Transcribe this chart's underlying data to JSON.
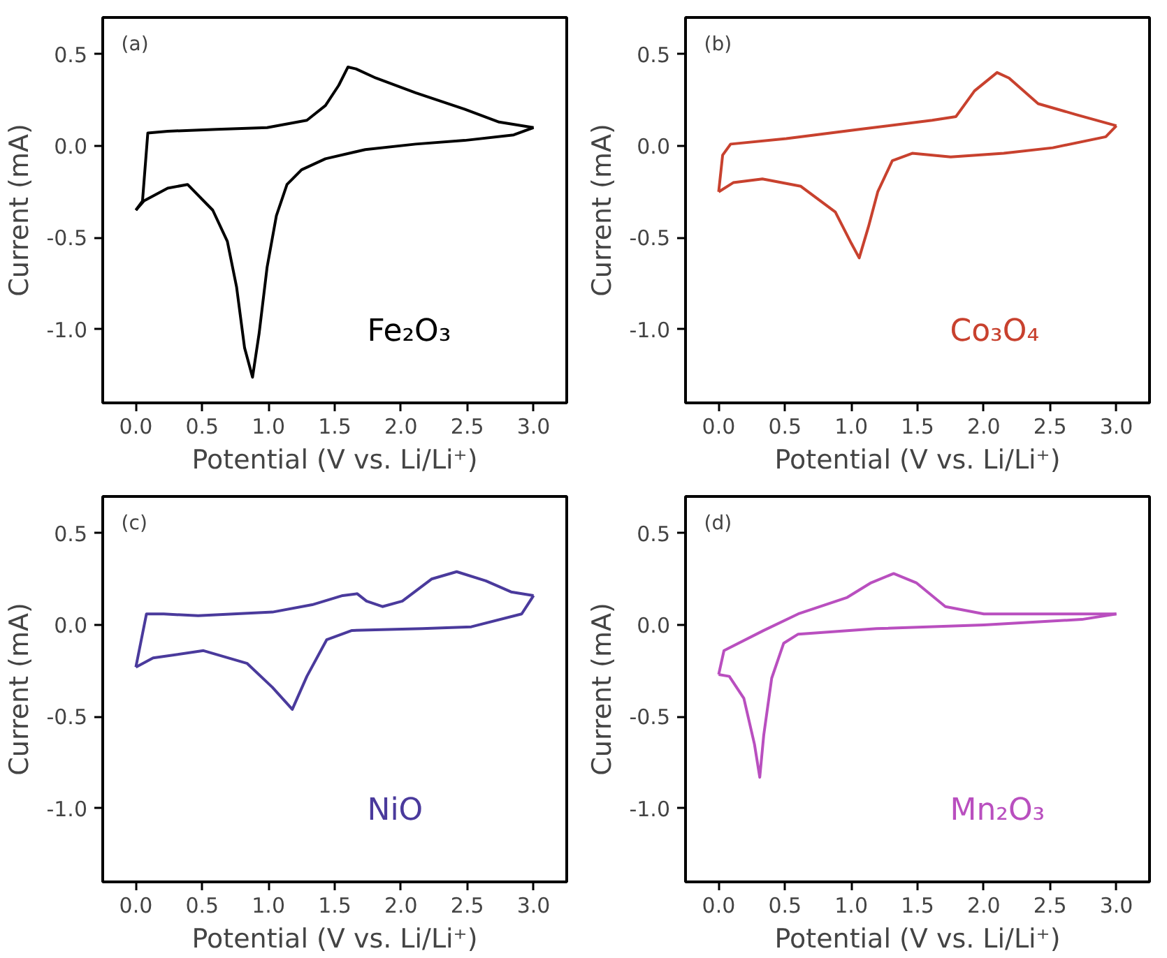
{
  "chart_data": [
    {
      "type": "line",
      "xlabel": "Potential (V vs. Li/Li⁺)",
      "ylabel": "Current (mA)",
      "annotations": [
        "(a)"
      ],
      "grid": false,
      "marker": "none",
      "line_style": "solid",
      "xlim": [
        -0.25,
        3.25
      ],
      "ylim": [
        -1.4,
        0.7
      ],
      "xticks": [
        {
          "value": 0,
          "label": "0.0"
        },
        0.5,
        {
          "value": 1,
          "label": "1.0"
        },
        1.5,
        {
          "value": 2,
          "label": "2.0"
        },
        2.5,
        {
          "value": 3,
          "label": "3.0"
        }
      ],
      "yticks": [
        {
          "value": 0.5,
          "label": "0.5"
        },
        {
          "value": 0,
          "label": "0.0"
        },
        {
          "value": -0.5,
          "label": "-0.5"
        },
        {
          "value": -1,
          "label": "-1.0"
        }
      ],
      "series": [
        {
          "name": "Fe₂O₃",
          "color": "#000000",
          "x": [
            0,
            0.05,
            0.09,
            0.24,
            0.61,
            0.99,
            1.29,
            1.43,
            1.53,
            1.6,
            1.66,
            1.81,
            2.11,
            2.48,
            2.74,
            3.0
          ],
          "values": [
            -0.35,
            -0.3,
            0.07,
            0.08,
            0.09,
            0.1,
            0.14,
            0.22,
            0.33,
            0.43,
            0.42,
            0.37,
            0.29,
            0.2,
            0.13,
            0.1
          ]
        },
        {
          "color": "#000000",
          "x": [
            3.0,
            2.85,
            2.48,
            2.11,
            1.73,
            1.43,
            1.25,
            1.14,
            1.06,
            0.99,
            0.93,
            0.88,
            0.82,
            0.76,
            0.69,
            0.58,
            0.39,
            0.24,
            0.06,
            0
          ],
          "values": [
            0.1,
            0.06,
            0.03,
            0.01,
            -0.02,
            -0.07,
            -0.13,
            -0.21,
            -0.38,
            -0.66,
            -1.02,
            -1.26,
            -1.1,
            -0.77,
            -0.52,
            -0.35,
            -0.21,
            -0.23,
            -0.3,
            -0.35
          ]
        }
      ]
    },
    {
      "type": "line",
      "xlabel": "Potential (V vs. Li/Li⁺)",
      "ylabel": "Current (mA)",
      "annotations": [
        "(b)"
      ],
      "grid": false,
      "marker": "none",
      "line_style": "solid",
      "xlim": [
        -0.25,
        3.25
      ],
      "ylim": [
        -1.4,
        0.7
      ],
      "xticks": [
        {
          "value": 0,
          "label": "0.0"
        },
        0.5,
        {
          "value": 1,
          "label": "1.0"
        },
        1.5,
        {
          "value": 2,
          "label": "2.0"
        },
        2.5,
        {
          "value": 3,
          "label": "3.0"
        }
      ],
      "yticks": [
        {
          "value": 0.5,
          "label": "0.5"
        },
        {
          "value": 0,
          "label": "0.0"
        },
        {
          "value": -0.5,
          "label": "-0.5"
        },
        {
          "value": -1,
          "label": "-1.0"
        }
      ],
      "series": [
        {
          "name": "Co₃O₄",
          "color": "#c8412e",
          "x": [
            0,
            0.03,
            0.09,
            0.51,
            1.06,
            1.61,
            1.79,
            1.93,
            2.1,
            2.19,
            2.41,
            2.7,
            3.0
          ],
          "values": [
            -0.25,
            -0.05,
            0.01,
            0.04,
            0.09,
            0.14,
            0.16,
            0.3,
            0.4,
            0.37,
            0.23,
            0.17,
            0.11
          ]
        },
        {
          "color": "#c8412e",
          "x": [
            3.0,
            2.92,
            2.52,
            2.15,
            1.75,
            1.46,
            1.31,
            1.2,
            1.13,
            1.06,
            1.0,
            0.88,
            0.62,
            0.33,
            0.11,
            0
          ],
          "values": [
            0.11,
            0.05,
            -0.01,
            -0.04,
            -0.06,
            -0.04,
            -0.08,
            -0.25,
            -0.44,
            -0.61,
            -0.53,
            -0.36,
            -0.22,
            -0.18,
            -0.2,
            -0.25
          ]
        }
      ]
    },
    {
      "type": "line",
      "xlabel": "Potential (V vs. Li/Li⁺)",
      "ylabel": "Current (mA)",
      "annotations": [
        "(c)"
      ],
      "grid": false,
      "marker": "none",
      "line_style": "solid",
      "xlim": [
        -0.25,
        3.25
      ],
      "ylim": [
        -1.4,
        0.7
      ],
      "xticks": [
        {
          "value": 0,
          "label": "0.0"
        },
        0.5,
        {
          "value": 1,
          "label": "1.0"
        },
        1.5,
        {
          "value": 2,
          "label": "2.0"
        },
        2.5,
        {
          "value": 3,
          "label": "3.0"
        }
      ],
      "yticks": [
        {
          "value": 0.5,
          "label": "0.5"
        },
        {
          "value": 0,
          "label": "0.0"
        },
        {
          "value": -0.5,
          "label": "-0.5"
        },
        {
          "value": -1,
          "label": "-1.0"
        }
      ],
      "series": [
        {
          "name": "NiO",
          "color": "#4a3a9c",
          "x": [
            0,
            0.08,
            0.21,
            0.47,
            1.03,
            1.33,
            1.56,
            1.67,
            1.74,
            1.86,
            2.01,
            2.23,
            2.42,
            2.64,
            2.83,
            3.0
          ],
          "values": [
            -0.23,
            0.06,
            0.06,
            0.05,
            0.07,
            0.11,
            0.16,
            0.17,
            0.13,
            0.1,
            0.13,
            0.25,
            0.29,
            0.24,
            0.18,
            0.16
          ]
        },
        {
          "color": "#4a3a9c",
          "x": [
            3.0,
            2.91,
            2.53,
            2.16,
            1.63,
            1.44,
            1.29,
            1.18,
            1.03,
            0.84,
            0.51,
            0.13,
            0
          ],
          "values": [
            0.16,
            0.06,
            -0.01,
            -0.02,
            -0.03,
            -0.08,
            -0.28,
            -0.46,
            -0.34,
            -0.21,
            -0.14,
            -0.18,
            -0.23
          ]
        }
      ]
    },
    {
      "type": "line",
      "xlabel": "Potential (V vs. Li/Li⁺)",
      "ylabel": "Current (mA)",
      "annotations": [
        "(d)"
      ],
      "grid": false,
      "marker": "none",
      "line_style": "solid",
      "xlim": [
        -0.25,
        3.25
      ],
      "ylim": [
        -1.4,
        0.7
      ],
      "xticks": [
        {
          "value": 0,
          "label": "0.0"
        },
        0.5,
        {
          "value": 1,
          "label": "1.0"
        },
        1.5,
        {
          "value": 2,
          "label": "2.0"
        },
        2.5,
        {
          "value": 3,
          "label": "3.0"
        }
      ],
      "yticks": [
        {
          "value": 0.5,
          "label": "0.5"
        },
        {
          "value": 0,
          "label": "0.0"
        },
        {
          "value": -0.5,
          "label": "-0.5"
        },
        {
          "value": -1,
          "label": "-1.0"
        }
      ],
      "series": [
        {
          "name": "Mn₂O₃",
          "color": "#b94fbf",
          "x": [
            0,
            0.04,
            0.34,
            0.6,
            0.97,
            1.15,
            1.32,
            1.49,
            1.71,
            2.0,
            3.0
          ],
          "values": [
            -0.27,
            -0.14,
            -0.03,
            0.06,
            0.15,
            0.23,
            0.28,
            0.23,
            0.1,
            0.06,
            0.06
          ]
        },
        {
          "color": "#b94fbf",
          "x": [
            3.0,
            2.74,
            2.0,
            1.19,
            0.6,
            0.49,
            0.4,
            0.34,
            0.31,
            0.27,
            0.19,
            0.08,
            0
          ],
          "values": [
            0.06,
            0.03,
            0.0,
            -0.02,
            -0.05,
            -0.1,
            -0.29,
            -0.6,
            -0.83,
            -0.65,
            -0.4,
            -0.28,
            -0.27
          ]
        }
      ]
    }
  ]
}
